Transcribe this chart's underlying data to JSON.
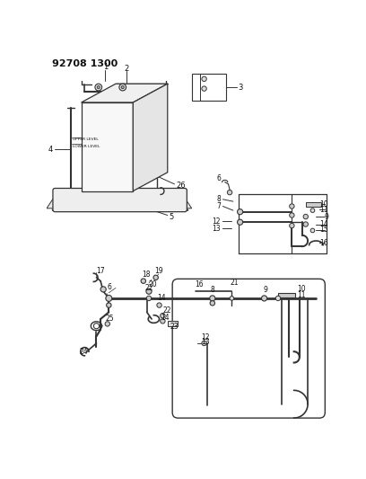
{
  "title": "92708 1300",
  "bg_color": "#ffffff",
  "line_color": "#333333",
  "text_color": "#111111",
  "figsize": [
    4.08,
    5.33
  ],
  "dpi": 100
}
